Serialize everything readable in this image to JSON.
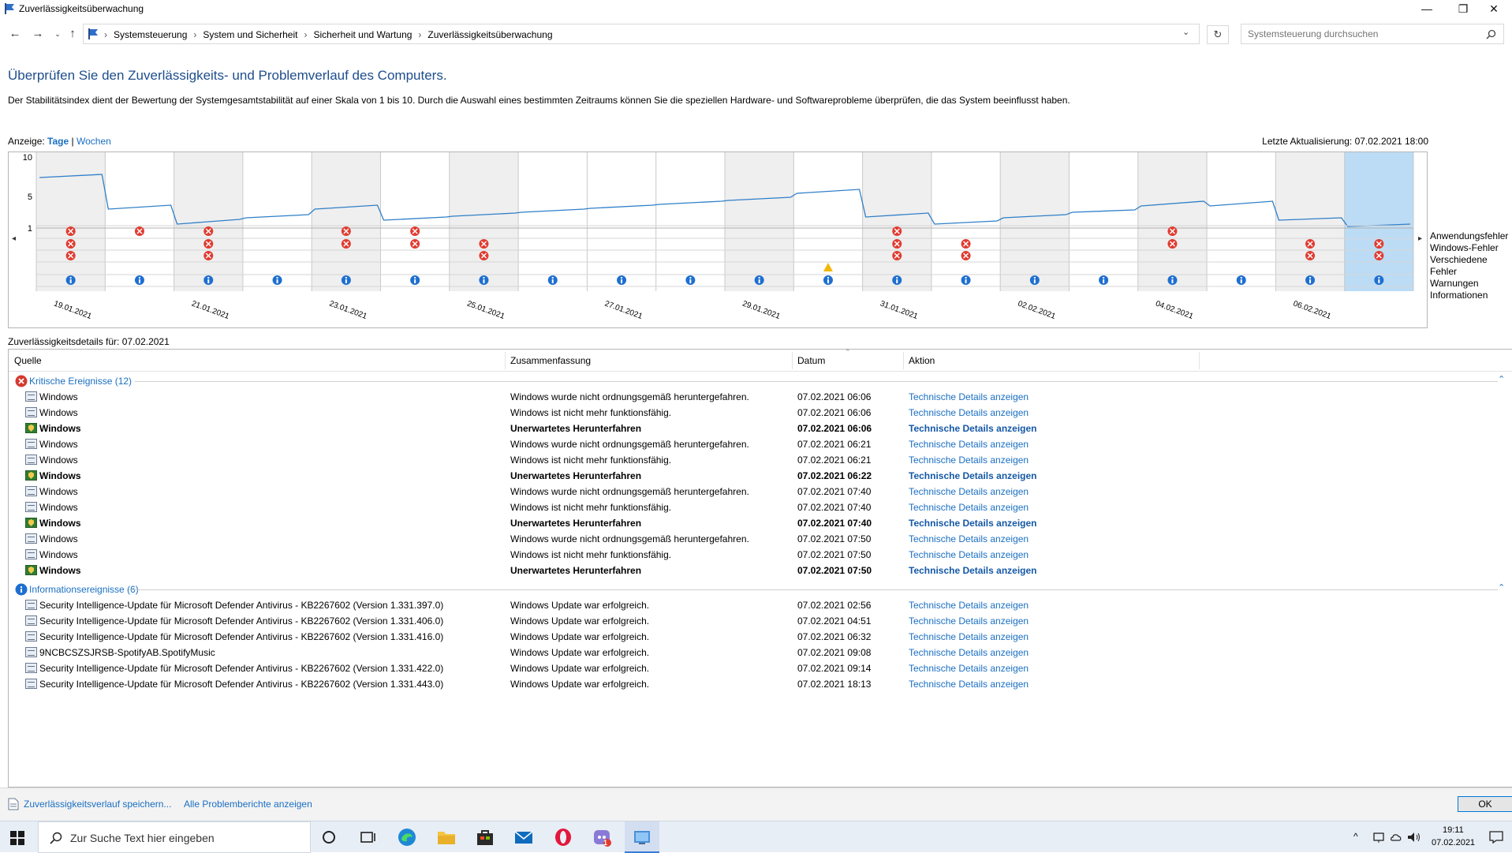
{
  "window": {
    "title": "Zuverlässigkeitsüberwachung",
    "minimize": "—",
    "maximize": "❐",
    "close": "✕"
  },
  "nav": {
    "breadcrumbs": [
      "Systemsteuerung",
      "System und Sicherheit",
      "Sicherheit und Wartung",
      "Zuverlässigkeitsüberwachung"
    ],
    "breadcrumb_sep": "›",
    "search_placeholder": "Systemsteuerung durchsuchen"
  },
  "main": {
    "heading": "Überprüfen Sie den Zuverlässigkeits- und Problemverlauf des Computers.",
    "description": "Der Stabilitätsindex dient der Bewertung der Systemgesamtstabilität auf einer Skala von 1 bis 10. Durch die Auswahl eines bestimmten Zeitraums können Sie die speziellen Hardware- und Softwareprobleme überprüfen, die das System beeinflusst haben.",
    "view_label": "Anzeige:",
    "view_days": "Tage",
    "view_sep": "|",
    "view_weeks": "Wochen",
    "last_update": "Letzte Aktualisierung: 07.02.2021 18:00",
    "details_for": "Zuverlässigkeitsdetails für: 07.02.2021"
  },
  "chart_data": {
    "type": "line",
    "title": "",
    "ylim": [
      1,
      10
    ],
    "y_ticks": [
      "10",
      "5",
      "1"
    ],
    "categories": [
      "19.01.2021",
      "20.01.2021",
      "21.01.2021",
      "22.01.2021",
      "23.01.2021",
      "24.01.2021",
      "25.01.2021",
      "26.01.2021",
      "27.01.2021",
      "28.01.2021",
      "29.01.2021",
      "30.01.2021",
      "31.01.2021",
      "01.02.2021",
      "02.02.2021",
      "03.02.2021",
      "04.02.2021",
      "05.02.2021",
      "06.02.2021",
      "07.02.2021"
    ],
    "x_tick_labels": [
      "19.01.2021",
      "21.01.2021",
      "23.01.2021",
      "25.01.2021",
      "27.01.2021",
      "29.01.2021",
      "31.01.2021",
      "02.02.2021",
      "04.02.2021",
      "06.02.2021"
    ],
    "series": [
      {
        "values_start": [
          7.4,
          3.4,
          1.5,
          2.3,
          3.4,
          2.0,
          2.5,
          3.0,
          3.5,
          4.0,
          4.5,
          5.4,
          2.4,
          1.5,
          2.3,
          3.0,
          3.8,
          3.8,
          2.0,
          1.2
        ],
        "values_end": [
          7.8,
          3.9,
          2.1,
          2.7,
          3.9,
          2.4,
          2.9,
          3.4,
          3.9,
          4.4,
          4.9,
          5.9,
          2.9,
          1.9,
          2.7,
          3.3,
          4.4,
          4.4,
          2.3,
          1.5
        ]
      }
    ],
    "selected_category": "07.02.2021",
    "weekend_shaded": [
      true,
      false,
      true,
      false,
      true,
      false,
      true,
      false,
      false,
      false,
      true,
      false,
      true,
      false,
      true,
      false,
      true,
      false,
      true,
      true
    ],
    "event_rows": [
      "Anwendungsfehler",
      "Windows-Fehler",
      "Verschiedene Fehler",
      "Warnungen",
      "Informationen"
    ],
    "events": {
      "Anwendungsfehler": [
        1,
        1,
        1,
        0,
        1,
        1,
        0,
        0,
        0,
        0,
        0,
        0,
        1,
        0,
        0,
        0,
        1,
        0,
        0,
        0
      ],
      "Windows-Fehler": [
        1,
        0,
        1,
        0,
        1,
        1,
        1,
        0,
        0,
        0,
        0,
        0,
        1,
        1,
        0,
        0,
        1,
        0,
        1,
        1
      ],
      "Verschiedene Fehler": [
        1,
        0,
        1,
        0,
        0,
        0,
        1,
        0,
        0,
        0,
        0,
        0,
        1,
        1,
        0,
        0,
        0,
        0,
        1,
        1
      ],
      "Warnungen": [
        0,
        0,
        0,
        0,
        0,
        0,
        0,
        0,
        0,
        0,
        0,
        1,
        0,
        0,
        0,
        0,
        0,
        0,
        0,
        0
      ],
      "Informationen": [
        1,
        1,
        1,
        1,
        1,
        1,
        1,
        1,
        1,
        1,
        1,
        1,
        1,
        1,
        1,
        1,
        1,
        1,
        1,
        1
      ]
    },
    "colors": {
      "line": "#2f7fc8",
      "error": "#e03c31",
      "warning": "#f2b705",
      "info": "#1e6fd0",
      "selected": "#bcdcf5",
      "weekend": "#efefef"
    }
  },
  "grid": {
    "columns": [
      "Quelle",
      "Zusammenfassung",
      "Datum",
      "Aktion"
    ],
    "groups": [
      {
        "label": "Kritische Ereignisse (12)",
        "icon": "error-icon",
        "rows": [
          {
            "src": "Windows",
            "sum": "Windows wurde nicht ordnungsgemäß heruntergefahren.",
            "date": "07.02.2021 06:06",
            "act": "Technische Details anzeigen",
            "bold": false
          },
          {
            "src": "Windows",
            "sum": "Windows ist nicht mehr funktionsfähig.",
            "date": "07.02.2021 06:06",
            "act": "Technische Details anzeigen",
            "bold": false
          },
          {
            "src": "Windows",
            "sum": "Unerwartetes Herunterfahren",
            "date": "07.02.2021 06:06",
            "act": "Technische Details anzeigen",
            "bold": true
          },
          {
            "src": "Windows",
            "sum": "Windows wurde nicht ordnungsgemäß heruntergefahren.",
            "date": "07.02.2021 06:21",
            "act": "Technische Details anzeigen",
            "bold": false
          },
          {
            "src": "Windows",
            "sum": "Windows ist nicht mehr funktionsfähig.",
            "date": "07.02.2021 06:21",
            "act": "Technische Details anzeigen",
            "bold": false
          },
          {
            "src": "Windows",
            "sum": "Unerwartetes Herunterfahren",
            "date": "07.02.2021 06:22",
            "act": "Technische Details anzeigen",
            "bold": true
          },
          {
            "src": "Windows",
            "sum": "Windows wurde nicht ordnungsgemäß heruntergefahren.",
            "date": "07.02.2021 07:40",
            "act": "Technische Details anzeigen",
            "bold": false
          },
          {
            "src": "Windows",
            "sum": "Windows ist nicht mehr funktionsfähig.",
            "date": "07.02.2021 07:40",
            "act": "Technische Details anzeigen",
            "bold": false
          },
          {
            "src": "Windows",
            "sum": "Unerwartetes Herunterfahren",
            "date": "07.02.2021 07:40",
            "act": "Technische Details anzeigen",
            "bold": true
          },
          {
            "src": "Windows",
            "sum": "Windows wurde nicht ordnungsgemäß heruntergefahren.",
            "date": "07.02.2021 07:50",
            "act": "Technische Details anzeigen",
            "bold": false
          },
          {
            "src": "Windows",
            "sum": "Windows ist nicht mehr funktionsfähig.",
            "date": "07.02.2021 07:50",
            "act": "Technische Details anzeigen",
            "bold": false
          },
          {
            "src": "Windows",
            "sum": "Unerwartetes Herunterfahren",
            "date": "07.02.2021 07:50",
            "act": "Technische Details anzeigen",
            "bold": true
          }
        ]
      },
      {
        "label": "Informationsereignisse (6)",
        "icon": "info-icon",
        "rows": [
          {
            "src": "Security Intelligence-Update für Microsoft Defender Antivirus - KB2267602 (Version 1.331.397.0)",
            "sum": "Windows Update war erfolgreich.",
            "date": "07.02.2021 02:56",
            "act": "Technische Details anzeigen",
            "bold": false
          },
          {
            "src": "Security Intelligence-Update für Microsoft Defender Antivirus - KB2267602 (Version 1.331.406.0)",
            "sum": "Windows Update war erfolgreich.",
            "date": "07.02.2021 04:51",
            "act": "Technische Details anzeigen",
            "bold": false
          },
          {
            "src": "Security Intelligence-Update für Microsoft Defender Antivirus - KB2267602 (Version 1.331.416.0)",
            "sum": "Windows Update war erfolgreich.",
            "date": "07.02.2021 06:32",
            "act": "Technische Details anzeigen",
            "bold": false
          },
          {
            "src": "9NCBCSZSJRSB-SpotifyAB.SpotifyMusic",
            "sum": "Windows Update war erfolgreich.",
            "date": "07.02.2021 09:08",
            "act": "Technische Details anzeigen",
            "bold": false
          },
          {
            "src": "Security Intelligence-Update für Microsoft Defender Antivirus - KB2267602 (Version 1.331.422.0)",
            "sum": "Windows Update war erfolgreich.",
            "date": "07.02.2021 09:14",
            "act": "Technische Details anzeigen",
            "bold": false
          },
          {
            "src": "Security Intelligence-Update für Microsoft Defender Antivirus - KB2267602 (Version 1.331.443.0)",
            "sum": "Windows Update war erfolgreich.",
            "date": "07.02.2021 18:13",
            "act": "Technische Details anzeigen",
            "bold": false
          }
        ]
      }
    ]
  },
  "footer": {
    "save_history": "Zuverlässigkeitsverlauf speichern...",
    "all_reports": "Alle Problemberichte anzeigen",
    "ok": "OK"
  },
  "taskbar": {
    "search_placeholder": "Zur Suche Text hier eingeben",
    "time": "19:11",
    "date": "07.02.2021",
    "badge_count": "1"
  }
}
